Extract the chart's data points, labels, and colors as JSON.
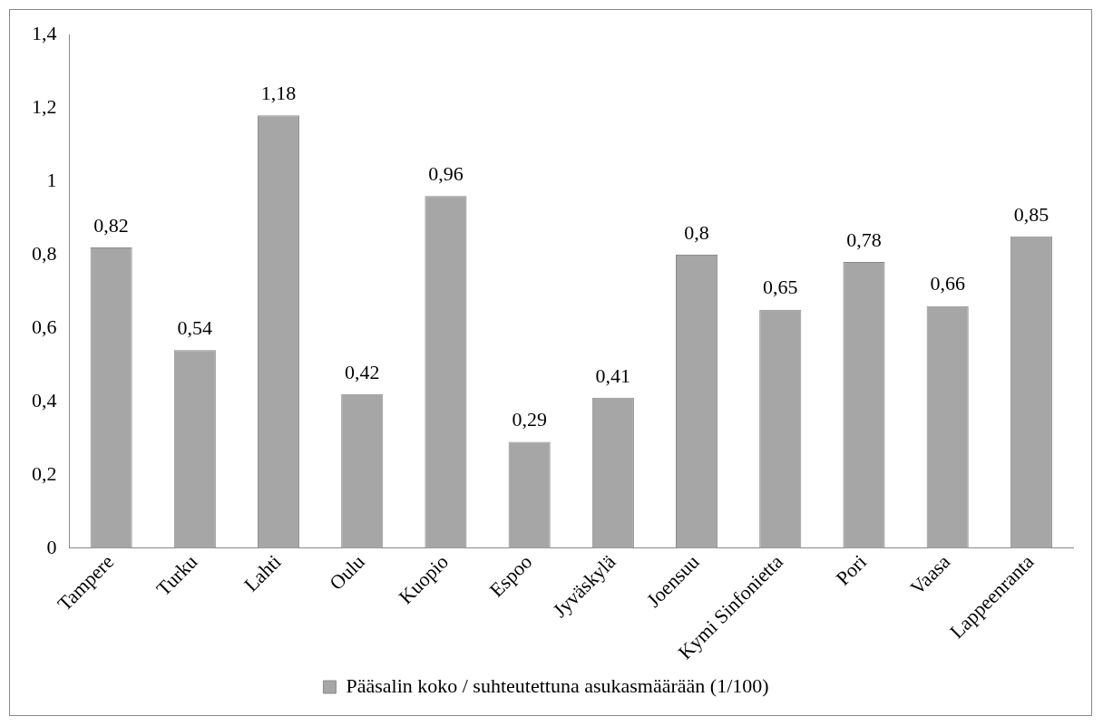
{
  "chart_data": {
    "type": "bar",
    "categories": [
      "Tampere",
      "Turku",
      "Lahti",
      "Oulu",
      "Kuopio",
      "Espoo",
      "Jyväskylä",
      "Joensuu",
      "Kymi Sinfonietta",
      "Pori",
      "Vaasa",
      "Lappeenranta"
    ],
    "series": [
      {
        "name": "Pääsalin koko / suhteutettuna asukasmäärään (1/100)",
        "color": "#a6a6a6",
        "values": [
          0.82,
          0.54,
          1.18,
          0.42,
          0.96,
          0.29,
          0.41,
          0.8,
          0.65,
          0.78,
          0.66,
          0.85
        ],
        "value_labels": [
          "0,82",
          "0,54",
          "1,18",
          "0,42",
          "0,96",
          "0,29",
          "0,41",
          "0,8",
          "0,65",
          "0,78",
          "0,66",
          "0,85"
        ]
      }
    ],
    "ylim": [
      0,
      1.4
    ],
    "yticks": [
      0,
      {
        "value": 0.2,
        "label": "0,2"
      },
      {
        "value": 0.4,
        "label": "0,4"
      },
      {
        "value": 0.6,
        "label": "0,6"
      },
      {
        "value": 0.8,
        "label": "0,8"
      },
      1,
      {
        "value": 1.2,
        "label": "1,2"
      },
      {
        "value": 1.4,
        "label": "1,4"
      }
    ],
    "grid": false,
    "legend": "bottom"
  }
}
